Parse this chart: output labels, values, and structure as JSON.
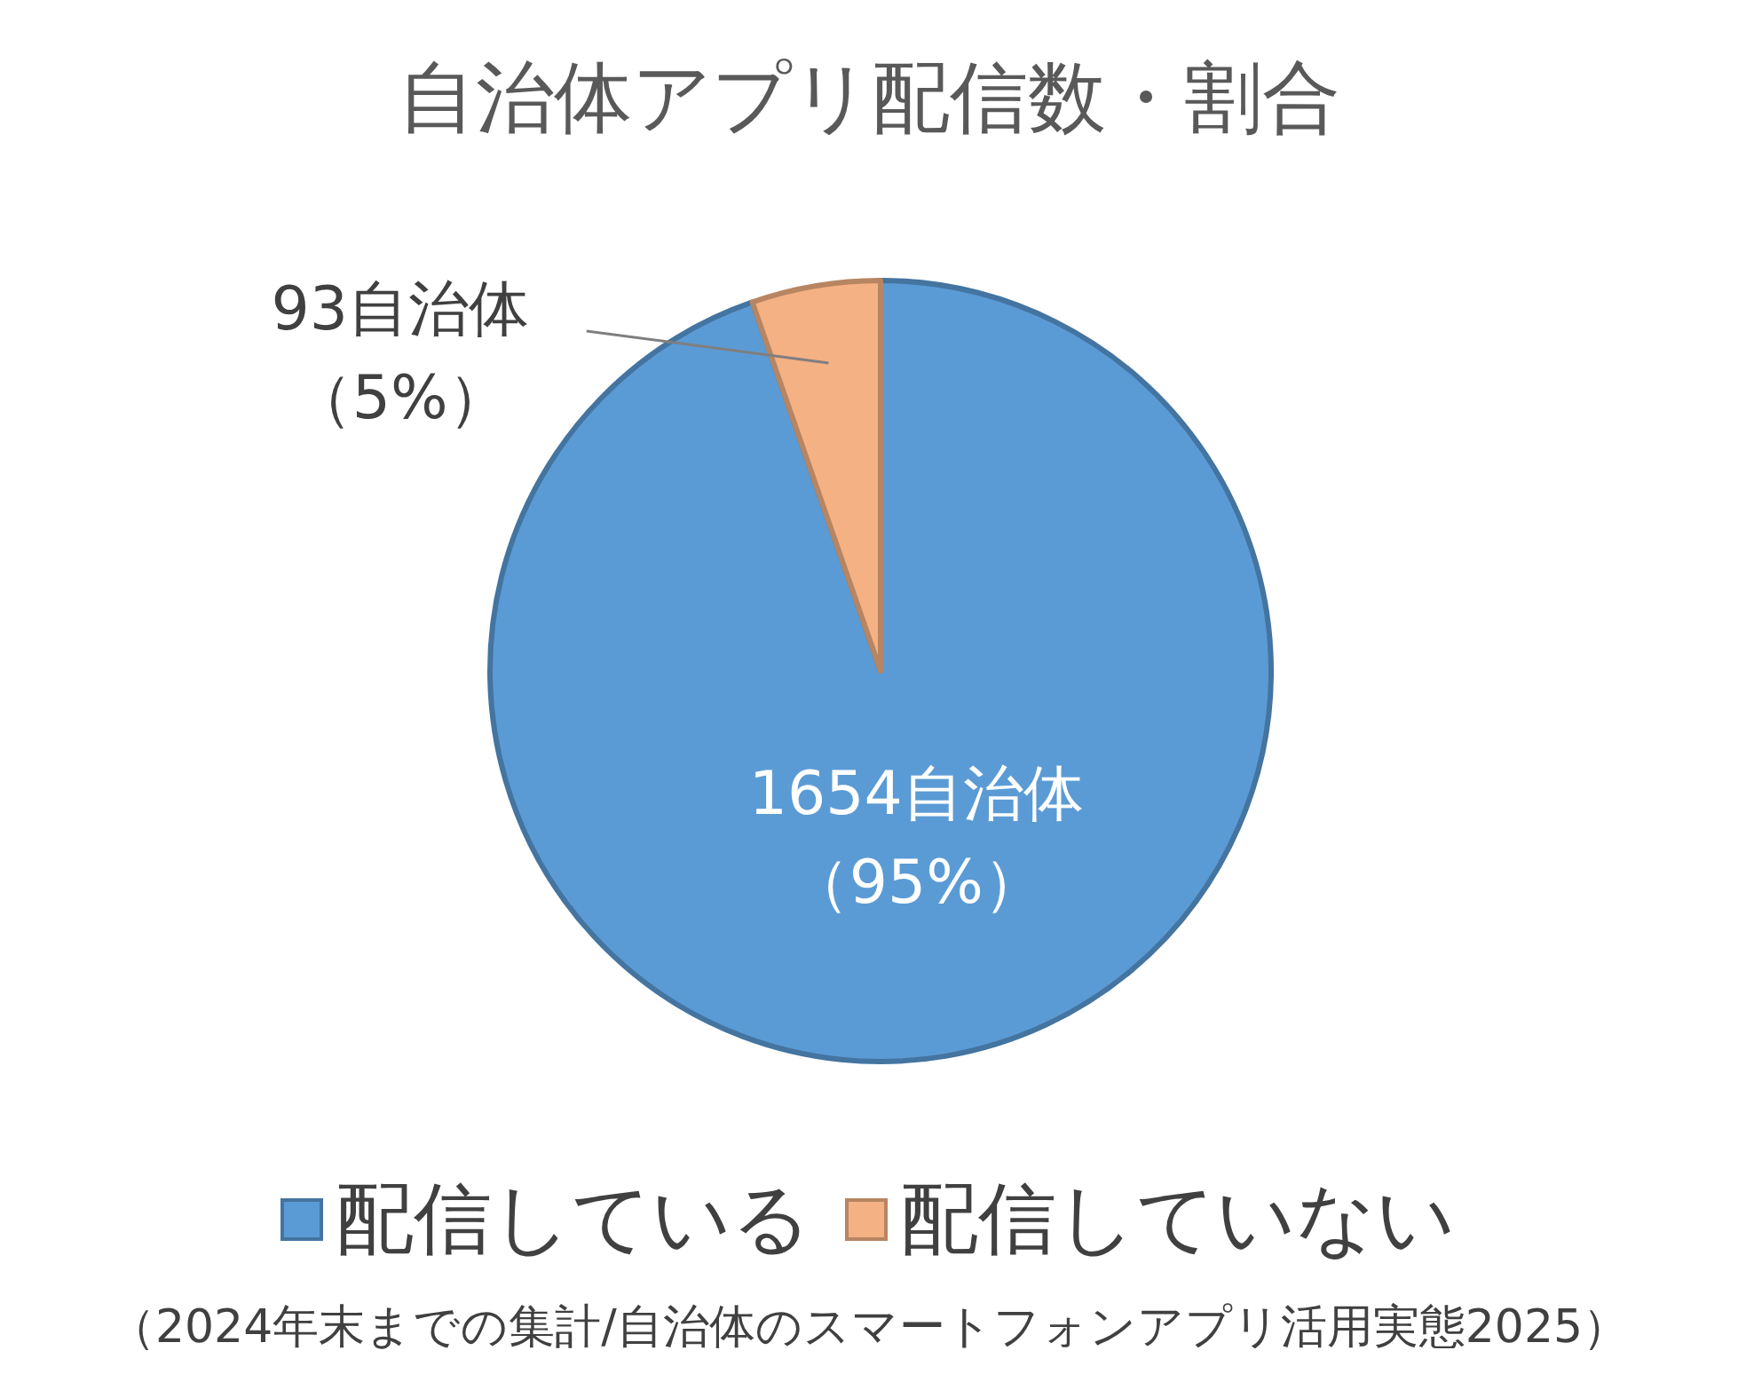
{
  "chart_data": {
    "type": "pie",
    "title": "自治体アプリ配信数・割合",
    "categories": [
      "配信している",
      "配信していない"
    ],
    "values": [
      1654,
      93
    ],
    "colors": [
      "#5b9bd5",
      "#f4b183"
    ],
    "value_labels": [
      "1654自治体（95%）",
      "93自治体（5%）"
    ],
    "legend": "bottom",
    "annotations": [
      "（2024年末までの集計/自治体のスマートフォンアプリ活用実態2025）"
    ]
  }
}
